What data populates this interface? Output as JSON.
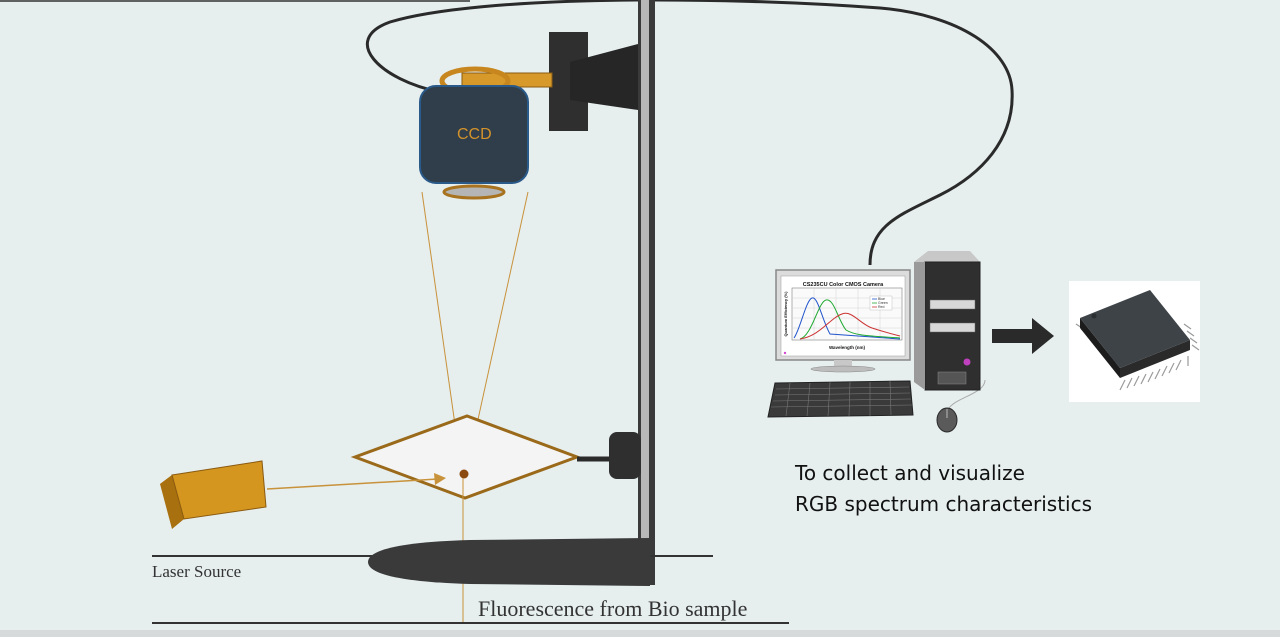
{
  "labels": {
    "ccd": "CCD",
    "laser_source": "Laser Source",
    "fluorescence": "Fluorescence from Bio sample",
    "collect_line1": "To collect and visualize",
    "collect_line2": "RGB spectrum characteristics"
  },
  "monitor_chart": {
    "title": "CS235CU Color CMOS Camera",
    "xlabel": "Wavelength (nm)",
    "ylabel": "Quantum Efficiency (%)",
    "legend": [
      "Blue",
      "Green",
      "Red"
    ]
  },
  "colors": {
    "background": "#e6eeee",
    "ccd_body": "#2f3e4a",
    "ccd_text": "#d4922a",
    "bracket": "#d79a2a",
    "laser": "#d4961e",
    "stand": "#3a3a3a",
    "sample_tube": "#3a3a3a",
    "blue_series": "#2255cc",
    "green_series": "#22aa33",
    "red_series": "#cc3333"
  }
}
